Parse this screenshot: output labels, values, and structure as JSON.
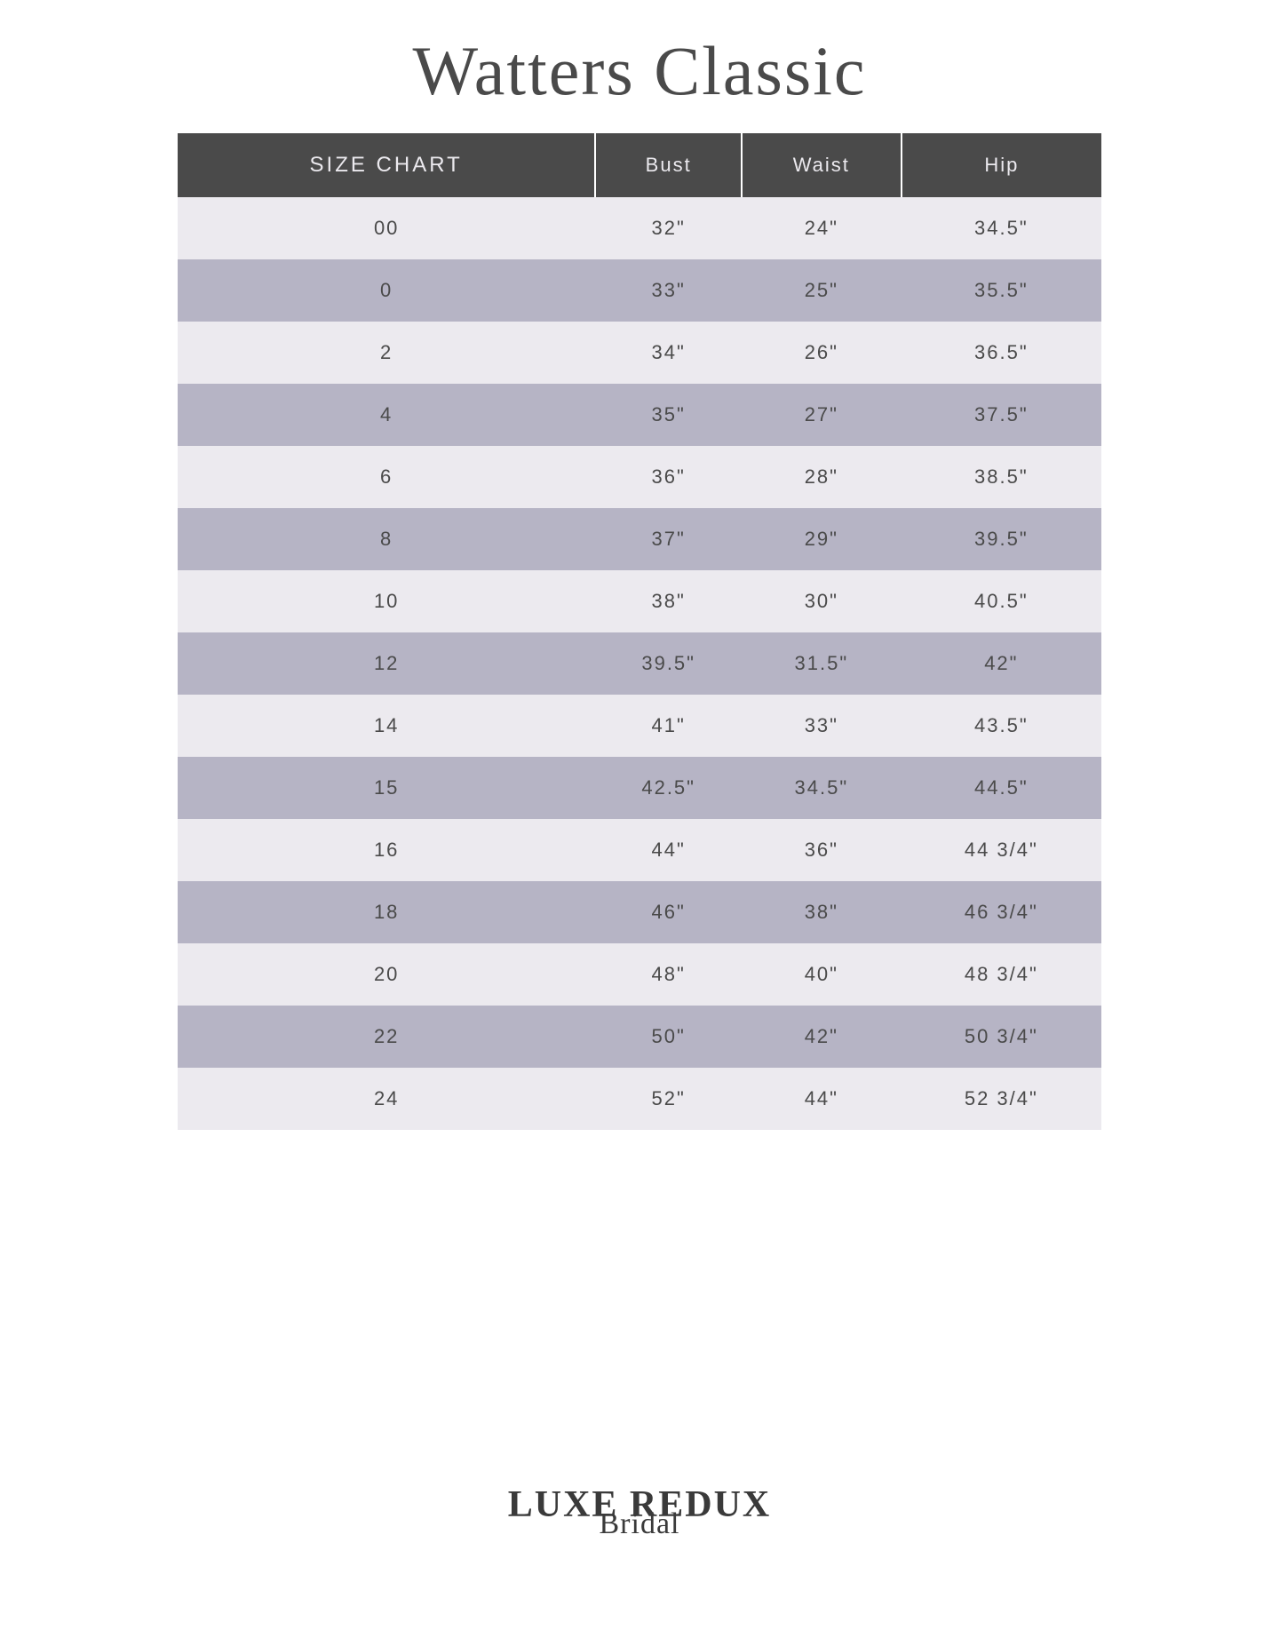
{
  "title": "Watters Classic",
  "table": {
    "type": "table",
    "background_color": "#ffffff",
    "header_bg": "#4a4a4a",
    "header_text_color": "#eceaef",
    "row_light_bg": "#eceaef",
    "row_dark_bg": "#b6b4c5",
    "cell_text_color": "#4a4a4a",
    "header_fontsize": 22,
    "cell_fontsize": 22,
    "columns": [
      "SIZE CHART",
      "Bust",
      "Waist",
      "Hip"
    ],
    "rows": [
      [
        "00",
        "32\"",
        "24\"",
        "34.5\""
      ],
      [
        "0",
        "33\"",
        "25\"",
        "35.5\""
      ],
      [
        "2",
        "34\"",
        "26\"",
        "36.5\""
      ],
      [
        "4",
        "35\"",
        "27\"",
        "37.5\""
      ],
      [
        "6",
        "36\"",
        "28\"",
        "38.5\""
      ],
      [
        "8",
        "37\"",
        "29\"",
        "39.5\""
      ],
      [
        "10",
        "38\"",
        "30\"",
        "40.5\""
      ],
      [
        "12",
        "39.5\"",
        "31.5\"",
        "42\""
      ],
      [
        "14",
        "41\"",
        "33\"",
        "43.5\""
      ],
      [
        "15",
        "42.5\"",
        "34.5\"",
        "44.5\""
      ],
      [
        "16",
        "44\"",
        "36\"",
        "44 3/4\""
      ],
      [
        "18",
        "46\"",
        "38\"",
        "46 3/4\""
      ],
      [
        "20",
        "48\"",
        "40\"",
        "48 3/4\""
      ],
      [
        "22",
        "50\"",
        "42\"",
        "50 3/4\""
      ],
      [
        "24",
        "52\"",
        "44\"",
        "52 3/4\""
      ]
    ]
  },
  "footer": {
    "brand": "LUXE REDUX",
    "sub": "Bridal"
  }
}
